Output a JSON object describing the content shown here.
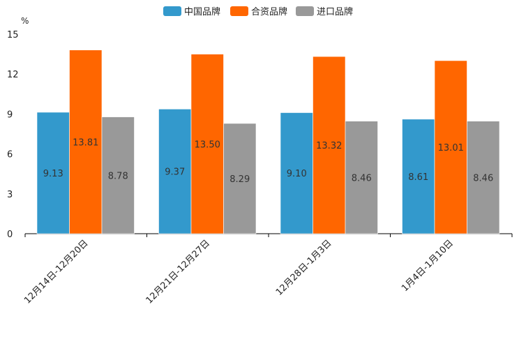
{
  "chart_data": {
    "type": "bar",
    "unit_label": "%",
    "categories": [
      "12月14日-12月20日",
      "12月21日-12月27日",
      "12月28日-1月3日",
      "1月4日-1月10日"
    ],
    "series": [
      {
        "name": "中国品牌",
        "color": "#3399CC",
        "values": [
          9.13,
          9.37,
          9.1,
          8.61
        ],
        "labels": [
          "9.13",
          "9.37",
          "9.10",
          "8.61"
        ]
      },
      {
        "name": "合资品牌",
        "color": "#FF6600",
        "values": [
          13.81,
          13.5,
          13.32,
          13.01
        ],
        "labels": [
          "13.81",
          "13.50",
          "13.32",
          "13.01"
        ]
      },
      {
        "name": "进口品牌",
        "color": "#999999",
        "values": [
          8.78,
          8.29,
          8.46,
          8.46
        ],
        "labels": [
          "8.78",
          "8.29",
          "8.46",
          "8.46"
        ]
      }
    ],
    "yticks": [
      "0",
      "3",
      "6",
      "9",
      "12",
      "15"
    ],
    "ylim": [
      0,
      15
    ],
    "legend_position": "top-center",
    "grid": false
  }
}
